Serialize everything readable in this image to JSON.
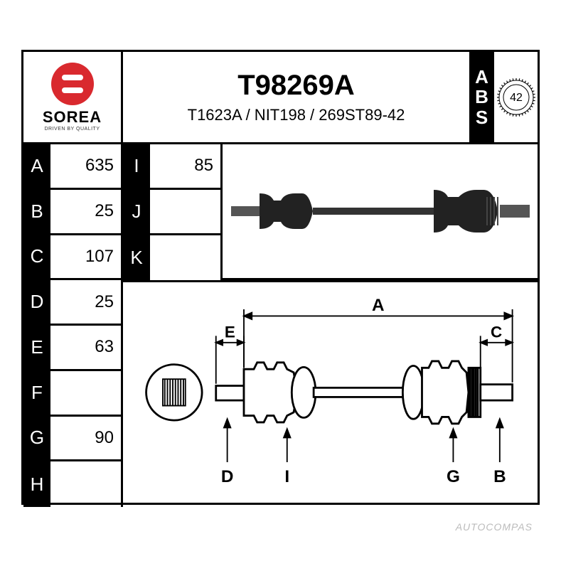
{
  "brand": {
    "name": "SOREA",
    "tagline": "DRIVEN BY QUALITY",
    "logo_color": "#d9292e"
  },
  "part": {
    "main_number": "T98269A",
    "cross_refs": "T1623A / NIT198 / 269ST89-42"
  },
  "abs": {
    "label_a": "A",
    "label_b": "B",
    "label_s": "S",
    "teeth": "42"
  },
  "specs_col1": [
    {
      "key": "A",
      "value": "635"
    },
    {
      "key": "B",
      "value": "25"
    },
    {
      "key": "C",
      "value": "107"
    },
    {
      "key": "D",
      "value": "25"
    },
    {
      "key": "E",
      "value": "63"
    },
    {
      "key": "F",
      "value": ""
    },
    {
      "key": "G",
      "value": "90"
    },
    {
      "key": "H",
      "value": ""
    }
  ],
  "specs_col2": [
    {
      "key": "I",
      "value": "85"
    },
    {
      "key": "J",
      "value": ""
    },
    {
      "key": "K",
      "value": ""
    }
  ],
  "diagram_labels": {
    "A": "A",
    "B": "B",
    "C": "C",
    "D": "D",
    "E": "E",
    "G": "G",
    "I": "I"
  },
  "colors": {
    "border": "#000000",
    "background": "#ffffff",
    "header_bg": "#000000",
    "header_fg": "#ffffff"
  },
  "watermark": "AUTOCOMPAS"
}
